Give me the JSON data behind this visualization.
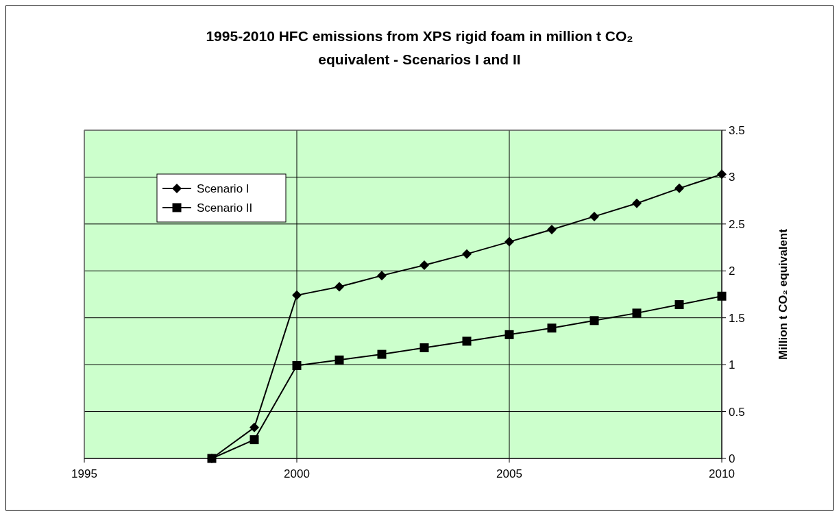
{
  "chart_data": {
    "type": "line",
    "title": "1995-2010 HFC emissions from XPS rigid foam in million t CO₂ equivalent - Scenarios I and II",
    "ylabel": "Million t CO₂ equivalent",
    "x": [
      1998,
      1999,
      2000,
      2001,
      2002,
      2003,
      2004,
      2005,
      2006,
      2007,
      2008,
      2009,
      2010
    ],
    "series": [
      {
        "name": "Scenario I",
        "color": "#000000",
        "marker": "diamond",
        "values": [
          0,
          0.33,
          1.74,
          1.83,
          1.95,
          2.06,
          2.18,
          2.31,
          2.44,
          2.58,
          2.72,
          2.88,
          3.03
        ]
      },
      {
        "name": "Scenario II",
        "color": "#000000",
        "marker": "square",
        "values": [
          0,
          0.2,
          0.99,
          1.05,
          1.11,
          1.18,
          1.25,
          1.32,
          1.39,
          1.47,
          1.55,
          1.64,
          1.73
        ]
      }
    ],
    "xlim": [
      1995,
      2010
    ],
    "xticks": [
      1995,
      2000,
      2005,
      2010
    ],
    "ylim": [
      0,
      3.5
    ],
    "yticks": [
      0,
      0.5,
      1,
      1.5,
      2,
      2.5,
      3,
      3.5
    ],
    "grid": true,
    "legend": "top left"
  }
}
